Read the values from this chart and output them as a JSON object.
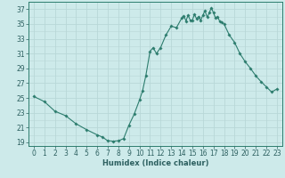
{
  "x_pts": [
    0,
    1,
    2,
    3,
    4,
    5,
    6,
    6.5,
    7,
    7.5,
    8,
    8.5,
    9,
    9.5,
    10,
    10.3,
    10.6,
    11,
    11.3,
    11.6,
    12,
    12.5,
    13,
    13.5,
    14,
    14.2,
    14.4,
    14.6,
    14.8,
    15,
    15.2,
    15.4,
    15.6,
    15.8,
    16,
    16.2,
    16.4,
    16.6,
    16.8,
    17,
    17.2,
    17.4,
    17.6,
    17.8,
    18,
    18.5,
    19,
    19.5,
    20,
    20.5,
    21,
    21.5,
    22,
    22.5,
    23
  ],
  "y_pts": [
    25.2,
    24.5,
    23.2,
    22.6,
    21.5,
    20.7,
    20.0,
    19.7,
    19.2,
    19.15,
    19.2,
    19.5,
    21.3,
    22.8,
    24.7,
    26.0,
    28.0,
    31.3,
    31.8,
    31.0,
    31.8,
    33.5,
    34.7,
    34.5,
    35.8,
    36.1,
    35.4,
    36.2,
    35.5,
    35.5,
    36.3,
    35.7,
    36.0,
    35.5,
    36.2,
    36.8,
    35.9,
    36.5,
    37.2,
    36.5,
    35.8,
    36.0,
    35.3,
    35.2,
    35.0,
    33.5,
    32.5,
    31.0,
    29.9,
    29.0,
    28.0,
    27.2,
    26.5,
    25.8,
    26.2
  ],
  "line_color": "#2d7d6e",
  "marker": "D",
  "marker_size": 1.8,
  "bg_color": "#cdeaea",
  "grid_major_color": "#b8d8d8",
  "grid_minor_color": "#c5e2e2",
  "xlabel": "Humidex (Indice chaleur)",
  "xlim": [
    -0.5,
    23.5
  ],
  "ylim": [
    18.5,
    38.0
  ],
  "yticks": [
    19,
    21,
    23,
    25,
    27,
    29,
    31,
    33,
    35,
    37
  ],
  "xticks": [
    0,
    1,
    2,
    3,
    4,
    5,
    6,
    7,
    8,
    9,
    10,
    11,
    12,
    13,
    14,
    15,
    16,
    17,
    18,
    19,
    20,
    21,
    22,
    23
  ],
  "tick_color": "#2d6060",
  "axis_color": "#2d7d6e",
  "xlabel_fontsize": 6.0,
  "tick_fontsize": 5.5
}
